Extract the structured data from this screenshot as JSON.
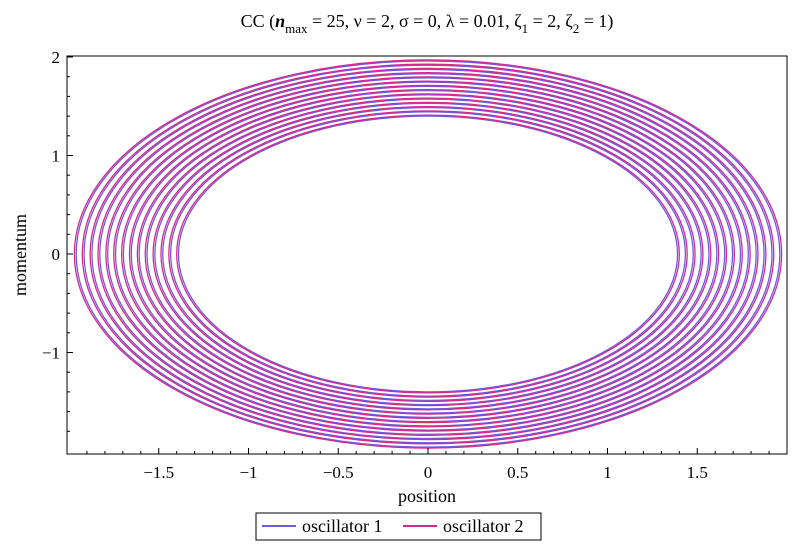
{
  "chart_data": {
    "type": "line",
    "title": {
      "prefix": "CC  (",
      "n": "n",
      "n_sub": "max",
      "rest1": " = 25, ν = 2, σ = 0, λ = 0.01, ζ",
      "zeta1_sub": "1",
      "rest2": " = 2, ζ",
      "zeta2_sub": "2",
      "rest3": " = 1)"
    },
    "xlabel": "position",
    "ylabel": "momentum",
    "xlim": [
      -2.0,
      2.0
    ],
    "ylim": [
      -2.0,
      2.0
    ],
    "x_ticks": [
      -1.5,
      -1,
      -0.5,
      0,
      0.5,
      1,
      1.5
    ],
    "x_tick_labels": [
      "−1.5",
      "−1",
      "−0.5",
      "0",
      "0.5",
      "1",
      "1.5"
    ],
    "y_ticks": [
      -1,
      0,
      1,
      2
    ],
    "y_tick_labels": [
      "−1",
      "0",
      "1",
      "2"
    ],
    "grid": false,
    "legend_placement": "bottom-center",
    "series": [
      {
        "name": "oscillator 1",
        "color": "#6b5be0",
        "curve": "nested ellipses in phase space",
        "x_amplitude_range": [
          1.39,
          1.96
        ],
        "y_amplitude_range": [
          1.4,
          1.96
        ],
        "loops": 14
      },
      {
        "name": "oscillator 2",
        "color": "#d6298c",
        "curve": "nested ellipses in phase space",
        "x_amplitude_range": [
          1.4,
          1.97
        ],
        "y_amplitude_range": [
          1.41,
          1.97
        ],
        "loops": 14
      }
    ]
  }
}
